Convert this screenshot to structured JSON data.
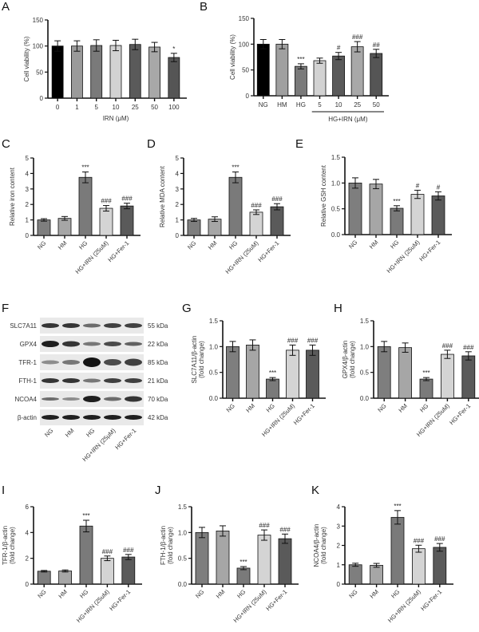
{
  "panels": {
    "A": {
      "label": "A"
    },
    "B": {
      "label": "B"
    },
    "C": {
      "label": "C"
    },
    "D": {
      "label": "D"
    },
    "E": {
      "label": "E"
    },
    "F": {
      "label": "F"
    },
    "G": {
      "label": "G"
    },
    "H": {
      "label": "H"
    },
    "I": {
      "label": "I"
    },
    "J": {
      "label": "J"
    },
    "K": {
      "label": "K"
    }
  },
  "western_blot": {
    "proteins": [
      {
        "name": "SLC7A11",
        "size": "55 kDa",
        "intensity": [
          0.85,
          0.85,
          0.6,
          0.8,
          0.8
        ],
        "height": [
          6,
          6,
          5,
          6,
          6
        ]
      },
      {
        "name": "GPX4",
        "size": "22 kDa",
        "intensity": [
          0.95,
          0.85,
          0.55,
          0.75,
          0.65
        ],
        "height": [
          8,
          7,
          5,
          6,
          5
        ]
      },
      {
        "name": "TFR-1",
        "size": "85 kDa",
        "intensity": [
          0.45,
          0.55,
          1.0,
          0.75,
          0.8
        ],
        "height": [
          5,
          6,
          12,
          8,
          9
        ]
      },
      {
        "name": "FTH-1",
        "size": "21 kDa",
        "intensity": [
          0.85,
          0.85,
          0.55,
          0.8,
          0.8
        ],
        "height": [
          6,
          6,
          5,
          6,
          6
        ]
      },
      {
        "name": "NCOA4",
        "size": "70 kDa",
        "intensity": [
          0.6,
          0.45,
          0.95,
          0.6,
          0.85
        ],
        "height": [
          4,
          4,
          8,
          5,
          7
        ]
      },
      {
        "name": "β-actin",
        "size": "42 kDa",
        "intensity": [
          0.95,
          0.95,
          0.95,
          0.95,
          0.95
        ],
        "height": [
          6,
          6,
          6,
          6,
          6
        ]
      }
    ],
    "lanes": [
      "NG",
      "HM",
      "HG",
      "HG+IRN (25μM)",
      "HG+Fer-1"
    ]
  },
  "chart_data": [
    {
      "id": "A",
      "type": "bar",
      "title": "",
      "categories": [
        "0",
        "1",
        "5",
        "10",
        "25",
        "50",
        "100"
      ],
      "values": [
        100,
        100,
        101,
        101,
        103,
        98,
        78
      ],
      "errors": [
        10,
        10,
        11,
        10,
        10,
        9,
        8
      ],
      "annotations": [
        "",
        "",
        "",
        "",
        "",
        "",
        "*"
      ],
      "colors": [
        "#000000",
        "#9a9a9a",
        "#7a7a7a",
        "#d2d2d2",
        "#5a5a5a",
        "#a8a8a8",
        "#555555"
      ],
      "xlabel": "IRN (μM)",
      "ylabel": "Cell viability (%)",
      "ylim": [
        0,
        150
      ],
      "yticks": [
        0,
        50,
        100,
        150
      ],
      "grid": false
    },
    {
      "id": "B",
      "type": "bar",
      "title": "",
      "categories": [
        "NG",
        "HM",
        "HG",
        "5",
        "10",
        "25",
        "50"
      ],
      "values": [
        100,
        100,
        57,
        68,
        77,
        95,
        82
      ],
      "errors": [
        9,
        9,
        5,
        5,
        7,
        10,
        8
      ],
      "annotations": [
        "",
        "",
        "***",
        "",
        "#",
        "###",
        "##"
      ],
      "colors": [
        "#000000",
        "#a0a0a0",
        "#7a7a7a",
        "#d2d2d2",
        "#5a5a5a",
        "#a8a8a8",
        "#555555"
      ],
      "group_label": "HG+IRN (μM)",
      "group_range": [
        3,
        6
      ],
      "xlabel": "",
      "ylabel": "Cell viability (%)",
      "ylim": [
        0,
        150
      ],
      "yticks": [
        0,
        50,
        100,
        150
      ],
      "grid": false
    },
    {
      "id": "C",
      "type": "bar",
      "title": "",
      "categories": [
        "NG",
        "HM",
        "HG",
        "HG+IRN (25uM)",
        "HG+Fer-1"
      ],
      "values": [
        1.0,
        1.1,
        3.75,
        1.75,
        1.9
      ],
      "errors": [
        0.08,
        0.12,
        0.35,
        0.18,
        0.18
      ],
      "annotations": [
        "",
        "",
        "***",
        "###",
        "###"
      ],
      "xlabel": "",
      "ylabel": "Relative iron content",
      "ylim": [
        0,
        5
      ],
      "yticks": [
        0,
        1,
        2,
        3,
        4,
        5
      ],
      "grid": false
    },
    {
      "id": "D",
      "type": "bar",
      "title": "",
      "categories": [
        "NG",
        "HM",
        "HG",
        "HG+IRN (25uM)",
        "HG+Fer-1"
      ],
      "values": [
        1.0,
        1.05,
        3.75,
        1.5,
        1.85
      ],
      "errors": [
        0.1,
        0.15,
        0.35,
        0.15,
        0.2
      ],
      "annotations": [
        "",
        "",
        "***",
        "###",
        "###"
      ],
      "xlabel": "",
      "ylabel": "Relative MDA content",
      "ylim": [
        0,
        5
      ],
      "yticks": [
        0,
        1,
        2,
        3,
        4,
        5
      ],
      "grid": false
    },
    {
      "id": "E",
      "type": "bar",
      "title": "",
      "categories": [
        "NG",
        "HM",
        "HG",
        "HG+IRN (25uM)",
        "HG+Fer-1"
      ],
      "values": [
        1.0,
        0.98,
        0.51,
        0.78,
        0.75
      ],
      "errors": [
        0.1,
        0.09,
        0.05,
        0.08,
        0.08
      ],
      "annotations": [
        "",
        "",
        "***",
        "#",
        "#"
      ],
      "xlabel": "",
      "ylabel": "Relative GSH content",
      "ylim": [
        0,
        1.5
      ],
      "yticks": [
        0.0,
        0.5,
        1.0,
        1.5
      ],
      "grid": false
    },
    {
      "id": "G",
      "type": "bar",
      "title": "",
      "categories": [
        "NG",
        "HM",
        "HG",
        "HG+IRN (25uM)",
        "HG+Fer-1"
      ],
      "values": [
        1.0,
        1.03,
        0.37,
        0.93,
        0.93
      ],
      "errors": [
        0.1,
        0.1,
        0.03,
        0.1,
        0.1
      ],
      "annotations": [
        "",
        "",
        "***",
        "###",
        "###"
      ],
      "xlabel": "",
      "ylabel": "SLC7A11/β-actin (fold change)",
      "ylim": [
        0,
        1.5
      ],
      "yticks": [
        0.0,
        0.5,
        1.0,
        1.5
      ],
      "grid": false
    },
    {
      "id": "H",
      "type": "bar",
      "title": "",
      "categories": [
        "NG",
        "HM",
        "HG",
        "HG+IRN (25uM)",
        "HG+Fer-1"
      ],
      "values": [
        1.0,
        0.98,
        0.37,
        0.85,
        0.82
      ],
      "errors": [
        0.1,
        0.09,
        0.03,
        0.08,
        0.08
      ],
      "annotations": [
        "",
        "",
        "***",
        "###",
        "###"
      ],
      "xlabel": "",
      "ylabel": "GPX4/β-actin (fold change)",
      "ylim": [
        0,
        1.5
      ],
      "yticks": [
        0.0,
        0.5,
        1.0,
        1.5
      ],
      "grid": false
    },
    {
      "id": "I",
      "type": "bar",
      "title": "",
      "categories": [
        "NG",
        "HM",
        "HG",
        "HG+IRN (25uM)",
        "HG+Fer-1"
      ],
      "values": [
        1.0,
        1.02,
        4.5,
        2.0,
        2.1
      ],
      "errors": [
        0.06,
        0.08,
        0.45,
        0.18,
        0.2
      ],
      "annotations": [
        "",
        "",
        "***",
        "###",
        "###"
      ],
      "xlabel": "",
      "ylabel": "TFR-1/β-actin (fold change)",
      "ylim": [
        0,
        6
      ],
      "yticks": [
        0,
        2,
        4,
        6
      ],
      "grid": false
    },
    {
      "id": "J",
      "type": "bar",
      "title": "",
      "categories": [
        "NG",
        "HM",
        "HG",
        "HG+IRN (25uM)",
        "HG+Fer-1"
      ],
      "values": [
        1.0,
        1.03,
        0.31,
        0.95,
        0.88
      ],
      "errors": [
        0.1,
        0.1,
        0.03,
        0.1,
        0.09
      ],
      "annotations": [
        "",
        "",
        "***",
        "###",
        "###"
      ],
      "xlabel": "",
      "ylabel": "FTH-1/β-actin (fold change)",
      "ylim": [
        0,
        1.5
      ],
      "yticks": [
        0.0,
        0.5,
        1.0,
        1.5
      ],
      "grid": false
    },
    {
      "id": "K",
      "type": "bar",
      "title": "",
      "categories": [
        "NG",
        "HM",
        "HG",
        "HG+IRN (25uM)",
        "HG+Fer-1"
      ],
      "values": [
        1.0,
        0.97,
        3.45,
        1.83,
        1.9
      ],
      "errors": [
        0.08,
        0.1,
        0.35,
        0.18,
        0.2
      ],
      "annotations": [
        "",
        "",
        "***",
        "###",
        "###"
      ],
      "xlabel": "",
      "ylabel": "NCOA4/β-actin (fold change)",
      "ylim": [
        0,
        4
      ],
      "yticks": [
        0,
        1,
        2,
        3,
        4
      ],
      "grid": false
    }
  ],
  "default_colors": [
    "#7e7e7e",
    "#a6a6a6",
    "#7a7a7a",
    "#d4d4d4",
    "#5a5a5a"
  ]
}
